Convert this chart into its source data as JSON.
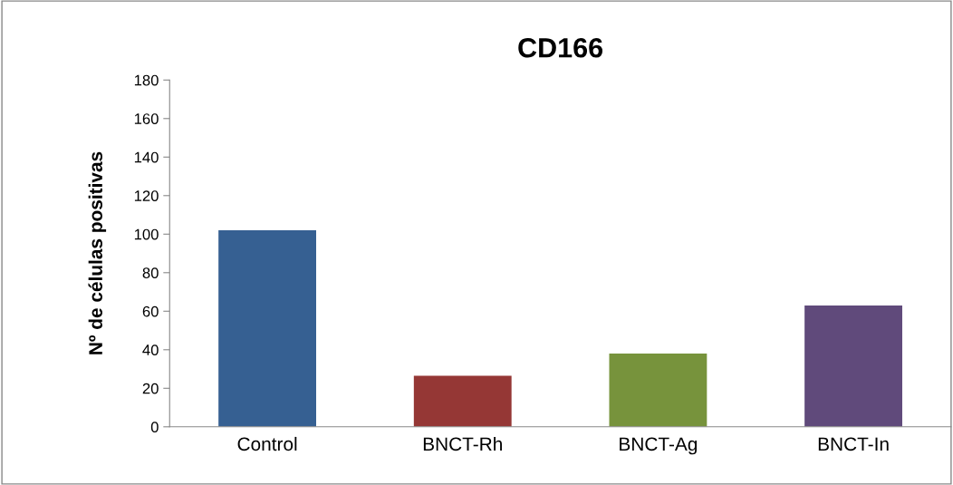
{
  "chart_data": {
    "type": "bar",
    "title": "CD166",
    "ylabel": "Nº de células positivas",
    "categories": [
      "Control",
      "BNCT-Rh",
      "BNCT-Ag",
      "BNCT-In"
    ],
    "values": [
      102,
      26.5,
      38,
      63
    ],
    "colors": [
      "#366092",
      "#953735",
      "#77933c",
      "#604a7b"
    ],
    "ylim": [
      0,
      180
    ],
    "yticks": [
      0,
      20,
      40,
      60,
      80,
      100,
      120,
      140,
      160,
      180
    ],
    "grid": false,
    "legend": false
  }
}
